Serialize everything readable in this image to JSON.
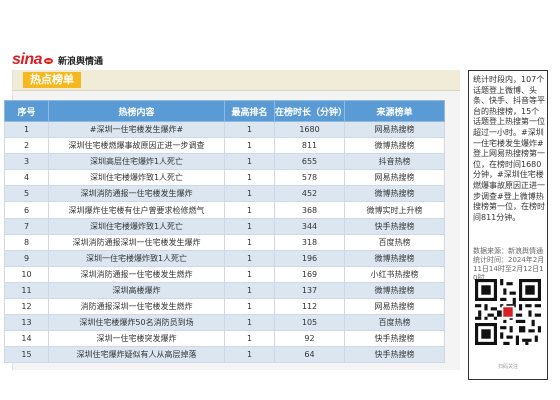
{
  "brand": {
    "logo_text": "sina",
    "logo_sub": "新浪舆情通"
  },
  "panel": {
    "title": "热点榜单"
  },
  "table": {
    "headers": [
      "序号",
      "热榜内容",
      "最高排名",
      "在榜时长（分钟）",
      "来源榜单"
    ],
    "rows": [
      [
        "1",
        "#深圳一住宅楼发生爆炸#",
        "1",
        "1680",
        "网易热搜榜"
      ],
      [
        "2",
        "深圳住宅楼燃爆事故原因正进一步调查",
        "1",
        "811",
        "微博热搜榜"
      ],
      [
        "3",
        "深圳高层住宅爆炸1人死亡",
        "1",
        "655",
        "抖音热榜"
      ],
      [
        "4",
        "深圳住宅楼爆炸致1人死亡",
        "1",
        "578",
        "网易热搜榜"
      ],
      [
        "5",
        "深圳消防通报一住宅楼发生爆炸",
        "1",
        "452",
        "微博热搜榜"
      ],
      [
        "6",
        "深圳爆炸住宅楼有住户曾要求检修燃气",
        "1",
        "368",
        "微博实时上升榜"
      ],
      [
        "7",
        "深圳住宅楼爆炸致1人死亡",
        "1",
        "344",
        "快手热搜榜"
      ],
      [
        "8",
        "深圳消防通报深圳一住宅楼发生爆炸",
        "1",
        "318",
        "百度热榜"
      ],
      [
        "9",
        "深圳一住宅楼爆炸致1人死亡",
        "1",
        "196",
        "微博热搜榜"
      ],
      [
        "10",
        "深圳消防通报一住宅楼发生燃炸",
        "1",
        "169",
        "小红书热搜榜"
      ],
      [
        "11",
        "深圳高楼爆炸",
        "1",
        "137",
        "微博热搜榜"
      ],
      [
        "12",
        "消防通报深圳一住宅楼发生燃炸",
        "1",
        "112",
        "网易热搜榜"
      ],
      [
        "13",
        "深圳住宅楼爆炸50名消防员到场",
        "1",
        "105",
        "百度热榜"
      ],
      [
        "14",
        "深圳一住宅楼突发爆炸",
        "1",
        "92",
        "快手热搜榜"
      ],
      [
        "15",
        "深圳住宅爆炸疑似有人从高层掉落",
        "1",
        "64",
        "快手热搜榜"
      ]
    ]
  },
  "side": {
    "text": "统计时段内，107个话题登上微博、头条、快手、抖音等平台的热搜榜，15个话题登上热搜第一位超过一小时。#深圳一住宅楼发生爆炸#登上网易热搜榜第一位，在榜时间1680分钟，#深圳住宅楼燃爆事故原因正进一步调查#登上微博热搜榜第一位，在榜时间811分钟。",
    "source": "数据来源：新浪舆情通 统计时间：2024年2月11日14时至2月12日10时",
    "qr_caption": "扫码关注"
  }
}
